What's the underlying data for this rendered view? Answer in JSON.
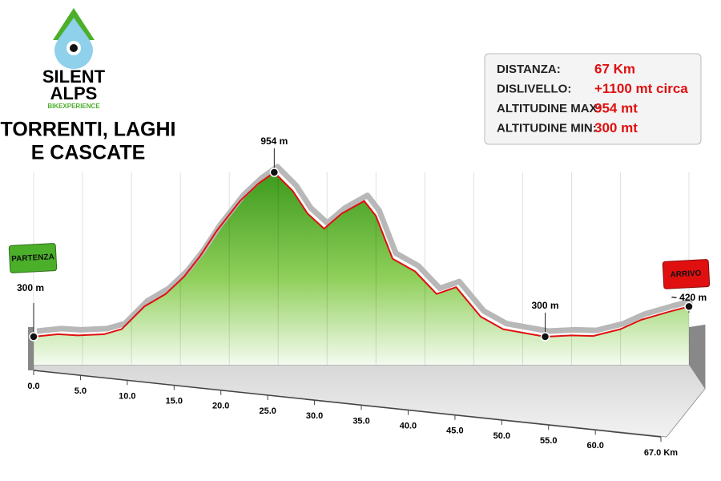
{
  "chart_data": {
    "type": "elevation-profile",
    "brand": {
      "name_line1": "SILENT",
      "name_line2": "ALPS",
      "tagline": "BIKEXPERIENCE"
    },
    "title_lines": [
      "TORRENTI, LAGHI",
      "E CASCATE"
    ],
    "stats": [
      {
        "label": "DISTANZA:",
        "value": "67 Km"
      },
      {
        "label": "DISLIVELLO:",
        "value": "+1100 mt circa"
      },
      {
        "label": "ALTITUDINE MAX:",
        "value": "954 mt"
      },
      {
        "label": "ALTITUDINE MIN:",
        "value": "300 mt"
      }
    ],
    "x": [
      0,
      2.5,
      4.5,
      7.2,
      9,
      11.3,
      13.5,
      15.4,
      17,
      18.7,
      21.1,
      23,
      24.6,
      26.5,
      28,
      29.7,
      31.5,
      33.8,
      35,
      36.7,
      39,
      41.2,
      43.2,
      45.7,
      48,
      52.3,
      55,
      57.2,
      60,
      62.1,
      65,
      67
    ],
    "values": [
      300,
      310,
      305,
      310,
      330,
      420,
      470,
      540,
      620,
      720,
      840,
      910,
      954,
      880,
      790,
      730,
      790,
      840,
      780,
      610,
      560,
      470,
      497,
      380,
      330,
      300,
      305,
      303,
      330,
      367,
      400,
      420
    ],
    "color": "#e01010",
    "xlim": [
      0,
      67
    ],
    "ylim": [
      300,
      954
    ],
    "xticks": [
      {
        "value": 0,
        "label": "0.0"
      },
      {
        "value": 5,
        "label": "5.0"
      },
      {
        "value": 10,
        "label": "10.0"
      },
      {
        "value": 15,
        "label": "15.0"
      },
      {
        "value": 20,
        "label": "20.0"
      },
      {
        "value": 25,
        "label": "25.0"
      },
      {
        "value": 30,
        "label": "30.0"
      },
      {
        "value": 35,
        "label": "35.0"
      },
      {
        "value": 40,
        "label": "40.0"
      },
      {
        "value": 45,
        "label": "45.0"
      },
      {
        "value": 50,
        "label": "50.0"
      },
      {
        "value": 55,
        "label": "55.0"
      },
      {
        "value": 60,
        "label": "60.0"
      },
      {
        "value": 67,
        "label": "67.0 Km"
      }
    ],
    "start": {
      "flag": "PARTENZA",
      "label": "300 m",
      "x": 0,
      "y": 300
    },
    "finish": {
      "flag": "ARRIVO",
      "label": "~ 420 m",
      "x": 67,
      "y": 420
    },
    "annotations": [
      {
        "text": "954 m",
        "x": 24.6,
        "y": 954
      },
      {
        "text": "300 m",
        "x": 52.3,
        "y": 300
      }
    ]
  }
}
